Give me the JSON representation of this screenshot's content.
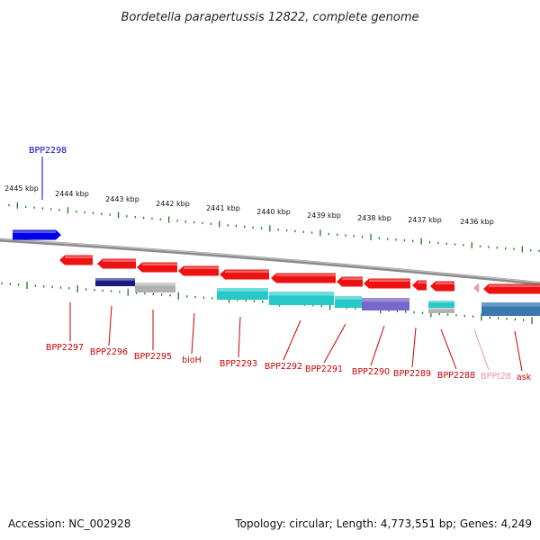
{
  "title": "Bordetella parapertussis 12822, complete genome",
  "footer": {
    "accession": "Accession: NC_002928",
    "topology": "Topology: circular; Length: 4,773,551 bp; Genes: 4,249"
  },
  "colors": {
    "backbone": "#8c8c8c",
    "ticks": "#1e7a1e",
    "forward_gene": "#0000e6",
    "reverse_gene": "#ee1111",
    "label_red": "#cc0000",
    "label_blue": "#0000cc",
    "label_pink": "#f090b8"
  },
  "kbp_labels": [
    "2445 kbp",
    "2444 kbp",
    "2443 kbp",
    "2442 kbp",
    "2441 kbp",
    "2440 kbp",
    "2439 kbp",
    "2438 kbp",
    "2437 kbp",
    "2436 kbp"
  ],
  "genes": [
    {
      "id": "BPP2298",
      "strand": "forward",
      "color": "blue"
    },
    {
      "id": "BPP2297",
      "strand": "reverse",
      "color": "red"
    },
    {
      "id": "BPP2296",
      "strand": "reverse",
      "color": "red"
    },
    {
      "id": "BPP2295",
      "strand": "reverse",
      "color": "red"
    },
    {
      "id": "bioH",
      "strand": "reverse",
      "color": "red"
    },
    {
      "id": "BPP2293",
      "strand": "reverse",
      "color": "red"
    },
    {
      "id": "BPP2292",
      "strand": "reverse",
      "color": "red"
    },
    {
      "id": "BPP2291",
      "strand": "reverse",
      "color": "red"
    },
    {
      "id": "BPP2290",
      "strand": "reverse",
      "color": "red"
    },
    {
      "id": "BPP2289",
      "strand": "reverse",
      "color": "red"
    },
    {
      "id": "BPP2288",
      "strand": "reverse",
      "color": "red"
    },
    {
      "id": "BPPt28",
      "strand": "reverse",
      "color": "pink"
    },
    {
      "id": "ask",
      "strand": "reverse",
      "color": "red"
    }
  ],
  "gene_labels": {
    "BPP2298": "BPP2298",
    "BPP2297": "BPP2297",
    "BPP2296": "BPP2296",
    "BPP2295": "BPP2295",
    "bioH": "bioH",
    "BPP2293": "BPP2293",
    "BPP2292": "BPP2292",
    "BPP2291": "BPP2291",
    "BPP2290": "BPP2290",
    "BPP2289": "BPP2289",
    "BPP2288": "BPP2288",
    "BPPt28": "BPPt28",
    "ask": "ask"
  }
}
